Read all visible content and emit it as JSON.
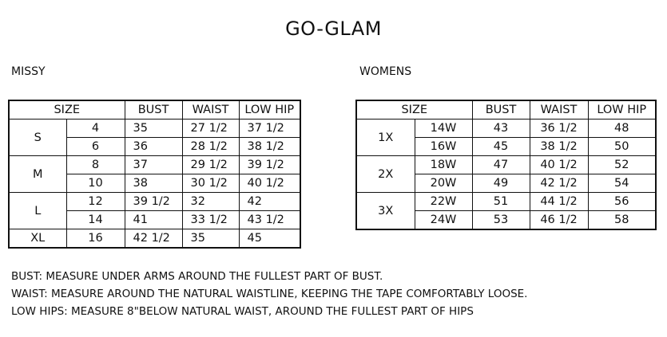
{
  "title": "GO-GLAM",
  "missy": {
    "label": "MISSY",
    "headers": [
      "SIZE",
      "BUST",
      "WAIST",
      "LOW HIP"
    ],
    "groups": [
      {
        "size": "S",
        "rows": [
          [
            "4",
            "35",
            "27 1/2",
            "37 1/2"
          ],
          [
            "6",
            "36",
            "28 1/2",
            "38 1/2"
          ]
        ]
      },
      {
        "size": "M",
        "rows": [
          [
            "8",
            "37",
            "29 1/2",
            "39 1/2"
          ],
          [
            "10",
            "38",
            "30 1/2",
            "40 1/2"
          ]
        ]
      },
      {
        "size": "L",
        "rows": [
          [
            "12",
            "39 1/2",
            "32",
            "42"
          ],
          [
            "14",
            "41",
            "33 1/2",
            "43 1/2"
          ]
        ]
      },
      {
        "size": "XL",
        "rows": [
          [
            "16",
            "42 1/2",
            "35",
            "45"
          ]
        ]
      }
    ]
  },
  "womens": {
    "label": "WOMENS",
    "headers": [
      "SIZE",
      "BUST",
      "WAIST",
      "LOW HIP"
    ],
    "groups": [
      {
        "size": "1X",
        "rows": [
          [
            "14W",
            "43",
            "36 1/2",
            "48"
          ],
          [
            "16W",
            "45",
            "38 1/2",
            "50"
          ]
        ]
      },
      {
        "size": "2X",
        "rows": [
          [
            "18W",
            "47",
            "40 1/2",
            "52"
          ],
          [
            "20W",
            "49",
            "42 1/2",
            "54"
          ]
        ]
      },
      {
        "size": "3X",
        "rows": [
          [
            "22W",
            "51",
            "44 1/2",
            "56"
          ],
          [
            "24W",
            "53",
            "46 1/2",
            "58"
          ]
        ]
      }
    ]
  },
  "notes": [
    "BUST: MEASURE UNDER ARMS AROUND THE FULLEST PART OF BUST.",
    "WAIST: MEASURE AROUND THE NATURAL WAISTLINE, KEEPING THE TAPE COMFORTABLY LOOSE.",
    "LOW HIPS: MEASURE 8\"BELOW NATURAL WAIST, AROUND THE FULLEST PART OF HIPS"
  ]
}
